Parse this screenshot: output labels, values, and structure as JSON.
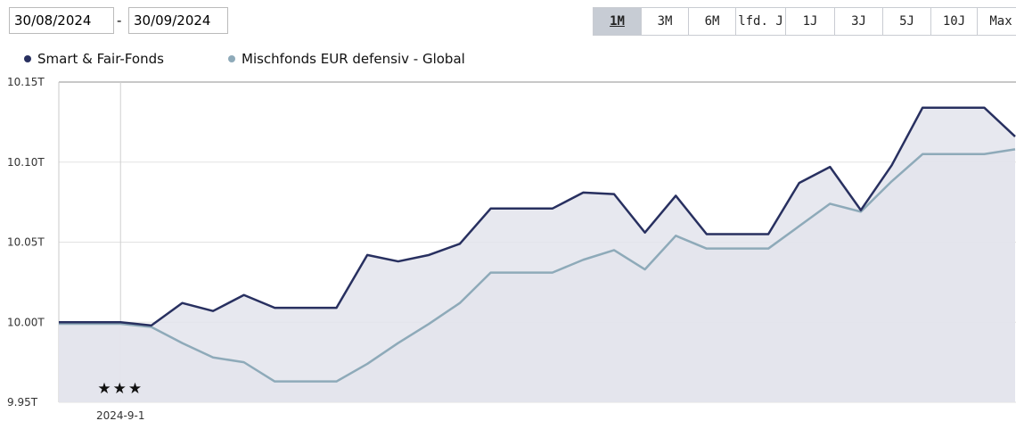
{
  "date_from": "30/08/2024",
  "date_separator": "-",
  "date_to": "30/09/2024",
  "range_buttons": [
    "1M",
    "3M",
    "6M",
    "lfd. J",
    "1J",
    "3J",
    "5J",
    "10J",
    "Max"
  ],
  "active_range": "1M",
  "chart_data": {
    "type": "line",
    "rating": "★★★",
    "categories": [
      null,
      null,
      "2024-9-1",
      null,
      null,
      null,
      null,
      null,
      null,
      null,
      null,
      null,
      null,
      null,
      null,
      null,
      null,
      null,
      null,
      null,
      null,
      null,
      null,
      null,
      null,
      null,
      null,
      null,
      null,
      null,
      null,
      null
    ],
    "series": [
      {
        "name": "Smart & Fair-Fonds",
        "color": "#283060",
        "values": [
          10.0,
          10.0,
          10.0,
          9.998,
          10.012,
          10.007,
          10.017,
          10.009,
          10.009,
          10.009,
          10.042,
          10.038,
          10.042,
          10.049,
          10.071,
          10.071,
          10.071,
          10.081,
          10.08,
          10.056,
          10.079,
          10.055,
          10.055,
          10.055,
          10.087,
          10.097,
          10.07,
          10.098,
          10.134,
          10.134,
          10.134,
          10.116
        ]
      },
      {
        "name": "Mischfonds EUR defensiv - Global",
        "color": "#8eaab9",
        "values": [
          9.999,
          9.999,
          9.999,
          9.997,
          9.987,
          9.978,
          9.975,
          9.963,
          9.963,
          9.963,
          9.974,
          9.987,
          9.999,
          10.012,
          10.031,
          10.031,
          10.031,
          10.039,
          10.045,
          10.033,
          10.054,
          10.046,
          10.046,
          10.046,
          10.06,
          10.074,
          10.069,
          10.088,
          10.105,
          10.105,
          10.105,
          10.108
        ]
      }
    ],
    "ylim": [
      9.95,
      10.15
    ],
    "yticks": [
      {
        "value": 9.95,
        "label": "9.95T"
      },
      {
        "value": 10.0,
        "label": "10.00T"
      },
      {
        "value": 10.05,
        "label": "10.05T"
      },
      {
        "value": 10.1,
        "label": "10.10T"
      },
      {
        "value": 10.15,
        "label": "10.15T"
      }
    ],
    "grid": true,
    "area_fill": "#e3e4ec"
  }
}
